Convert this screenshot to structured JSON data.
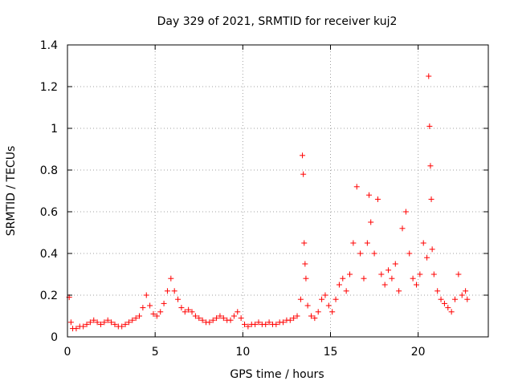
{
  "chart_data": {
    "type": "scatter",
    "title": "Day 329 of 2021, SRMTID for receiver kuj2",
    "xlabel": "GPS time / hours",
    "ylabel": "SRMTID / TECUs",
    "xlim": [
      0,
      24
    ],
    "ylim": [
      0,
      1.4
    ],
    "xticks": [
      0,
      5,
      10,
      15,
      20
    ],
    "xtick_labels": [
      "0",
      "5",
      "10",
      "15",
      "20"
    ],
    "yticks": [
      0,
      0.2,
      0.4,
      0.6,
      0.8,
      1.0,
      1.2,
      1.4
    ],
    "ytick_labels": [
      "0",
      "0.2",
      "0.4",
      "0.6",
      "0.8",
      "1",
      "1.2",
      "1.4"
    ],
    "grid": true,
    "marker": "plus",
    "series": [
      {
        "name": "SRMTID",
        "color": "#ff0000",
        "x": [
          0.1,
          0.2,
          0.3,
          0.5,
          0.7,
          0.9,
          1.1,
          1.3,
          1.5,
          1.7,
          1.9,
          2.1,
          2.3,
          2.5,
          2.7,
          2.9,
          3.1,
          3.3,
          3.5,
          3.7,
          3.9,
          4.1,
          4.3,
          4.5,
          4.7,
          4.9,
          5.1,
          5.3,
          5.5,
          5.7,
          5.9,
          6.1,
          6.3,
          6.5,
          6.7,
          6.9,
          7.1,
          7.3,
          7.5,
          7.7,
          7.9,
          8.1,
          8.3,
          8.5,
          8.7,
          8.9,
          9.1,
          9.3,
          9.5,
          9.7,
          9.9,
          10.1,
          10.3,
          10.5,
          10.7,
          10.9,
          11.1,
          11.3,
          11.5,
          11.7,
          11.9,
          12.1,
          12.3,
          12.5,
          12.7,
          12.9,
          13.1,
          13.3,
          13.4,
          13.45,
          13.5,
          13.55,
          13.6,
          13.7,
          13.9,
          14.1,
          14.3,
          14.5,
          14.7,
          14.9,
          15.1,
          15.3,
          15.5,
          15.7,
          15.9,
          16.1,
          16.3,
          16.5,
          16.7,
          16.9,
          17.1,
          17.2,
          17.3,
          17.5,
          17.7,
          17.9,
          18.1,
          18.3,
          18.5,
          18.7,
          18.9,
          19.1,
          19.3,
          19.5,
          19.7,
          19.9,
          20.1,
          20.3,
          20.5,
          20.6,
          20.65,
          20.7,
          20.75,
          20.8,
          20.9,
          21.1,
          21.3,
          21.5,
          21.7,
          21.9,
          22.1,
          22.3,
          22.5,
          22.7,
          22.8
        ],
        "y": [
          0.19,
          0.07,
          0.04,
          0.04,
          0.05,
          0.05,
          0.06,
          0.07,
          0.08,
          0.07,
          0.06,
          0.07,
          0.08,
          0.07,
          0.06,
          0.05,
          0.05,
          0.06,
          0.07,
          0.08,
          0.09,
          0.1,
          0.14,
          0.2,
          0.15,
          0.11,
          0.1,
          0.12,
          0.16,
          0.22,
          0.28,
          0.22,
          0.18,
          0.14,
          0.12,
          0.13,
          0.12,
          0.1,
          0.09,
          0.08,
          0.07,
          0.07,
          0.08,
          0.09,
          0.1,
          0.09,
          0.08,
          0.08,
          0.1,
          0.12,
          0.09,
          0.06,
          0.05,
          0.06,
          0.06,
          0.07,
          0.06,
          0.06,
          0.07,
          0.06,
          0.06,
          0.07,
          0.07,
          0.08,
          0.08,
          0.09,
          0.1,
          0.18,
          0.87,
          0.78,
          0.45,
          0.35,
          0.28,
          0.15,
          0.1,
          0.09,
          0.12,
          0.18,
          0.2,
          0.15,
          0.12,
          0.18,
          0.25,
          0.28,
          0.22,
          0.3,
          0.45,
          0.72,
          0.4,
          0.28,
          0.45,
          0.68,
          0.55,
          0.4,
          0.66,
          0.3,
          0.25,
          0.32,
          0.28,
          0.35,
          0.22,
          0.52,
          0.6,
          0.4,
          0.28,
          0.25,
          0.3,
          0.45,
          0.38,
          1.25,
          1.01,
          0.82,
          0.66,
          0.42,
          0.3,
          0.22,
          0.18,
          0.16,
          0.14,
          0.12,
          0.18,
          0.3,
          0.2,
          0.22,
          0.18
        ]
      }
    ]
  }
}
